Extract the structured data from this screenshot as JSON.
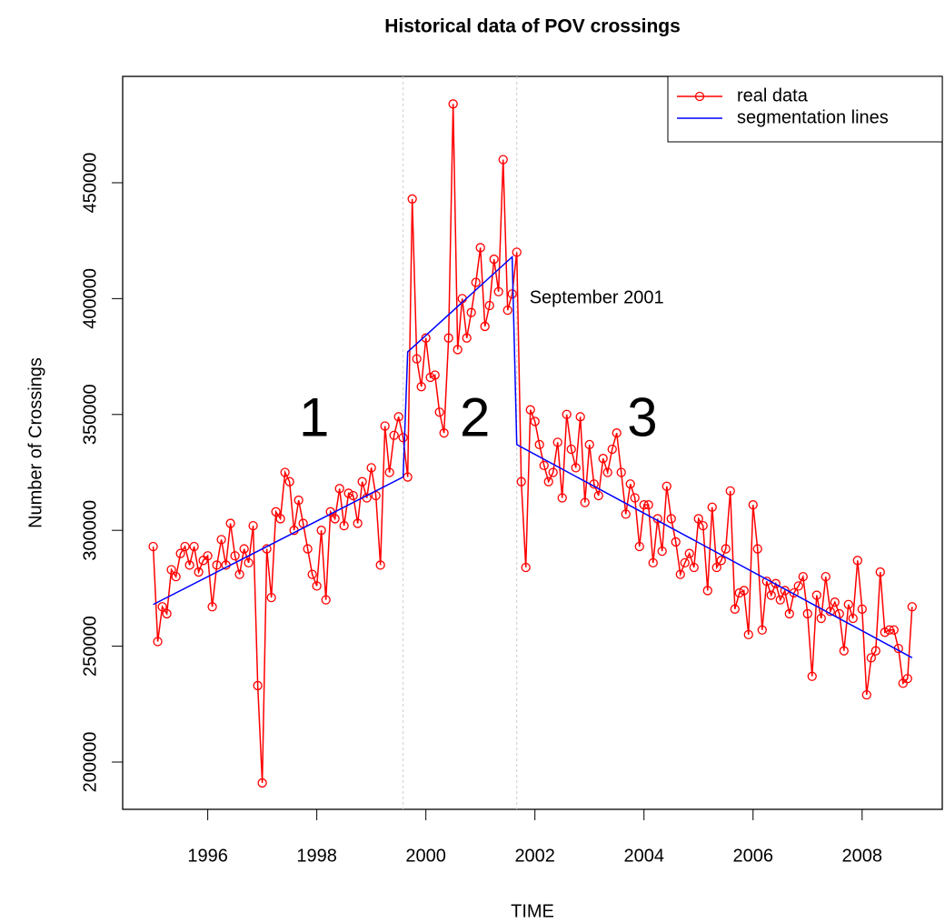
{
  "chart_data": {
    "type": "line",
    "title": "Historical data of POV crossings",
    "x_label": "TIME",
    "y_label": "Number of Crossings",
    "xlim": [
      1994.44,
      2009.47
    ],
    "xticks": [
      1996,
      1998,
      2000,
      2002,
      2004,
      2006,
      2008
    ],
    "ylim": [
      179600,
      495900
    ],
    "yticks": [
      200000,
      250000,
      300000,
      350000,
      400000,
      450000
    ],
    "legend": "topright",
    "vlines": {
      "x": [
        1999.583,
        2001.667
      ],
      "color": "#cccccc"
    },
    "annotations": [
      {
        "text": "1",
        "x": 1997.95,
        "y": 347000
      },
      {
        "text": "2",
        "x": 2000.9,
        "y": 347000
      },
      {
        "text": "3",
        "x": 2003.97,
        "y": 347000
      },
      {
        "text": "September 2001",
        "x": 2001.9,
        "y": 400000
      }
    ],
    "series": [
      {
        "name": "real data",
        "color": "#ff0000",
        "markers": true,
        "x": [
          1995.0,
          1995.083,
          1995.167,
          1995.25,
          1995.333,
          1995.417,
          1995.5,
          1995.583,
          1995.667,
          1995.75,
          1995.833,
          1995.917,
          1996.0,
          1996.083,
          1996.167,
          1996.25,
          1996.333,
          1996.417,
          1996.5,
          1996.583,
          1996.667,
          1996.75,
          1996.833,
          1996.917,
          1997.0,
          1997.083,
          1997.167,
          1997.25,
          1997.333,
          1997.417,
          1997.5,
          1997.583,
          1997.667,
          1997.75,
          1997.833,
          1997.917,
          1998.0,
          1998.083,
          1998.167,
          1998.25,
          1998.333,
          1998.417,
          1998.5,
          1998.583,
          1998.667,
          1998.75,
          1998.833,
          1998.917,
          1999.0,
          1999.083,
          1999.167,
          1999.25,
          1999.333,
          1999.417,
          1999.5,
          1999.583,
          1999.667,
          1999.75,
          1999.833,
          1999.917,
          2000.0,
          2000.083,
          2000.167,
          2000.25,
          2000.333,
          2000.417,
          2000.5,
          2000.583,
          2000.667,
          2000.75,
          2000.833,
          2000.917,
          2001.0,
          2001.083,
          2001.167,
          2001.25,
          2001.333,
          2001.417,
          2001.5,
          2001.583,
          2001.667,
          2001.75,
          2001.833,
          2001.917,
          2002.0,
          2002.083,
          2002.167,
          2002.25,
          2002.333,
          2002.417,
          2002.5,
          2002.583,
          2002.667,
          2002.75,
          2002.833,
          2002.917,
          2003.0,
          2003.083,
          2003.167,
          2003.25,
          2003.333,
          2003.417,
          2003.5,
          2003.583,
          2003.667,
          2003.75,
          2003.833,
          2003.917,
          2004.0,
          2004.083,
          2004.167,
          2004.25,
          2004.333,
          2004.417,
          2004.5,
          2004.583,
          2004.667,
          2004.75,
          2004.833,
          2004.917,
          2005.0,
          2005.083,
          2005.167,
          2005.25,
          2005.333,
          2005.417,
          2005.5,
          2005.583,
          2005.667,
          2005.75,
          2005.833,
          2005.917,
          2006.0,
          2006.083,
          2006.167,
          2006.25,
          2006.333,
          2006.417,
          2006.5,
          2006.583,
          2006.667,
          2006.75,
          2006.833,
          2006.917,
          2007.0,
          2007.083,
          2007.167,
          2007.25,
          2007.333,
          2007.417,
          2007.5,
          2007.583,
          2007.667,
          2007.75,
          2007.833,
          2007.917,
          2008.0,
          2008.083,
          2008.167,
          2008.25,
          2008.333,
          2008.417,
          2008.5,
          2008.583,
          2008.667,
          2008.75,
          2008.833,
          2008.917
        ],
        "values": [
          293000,
          252000,
          267000,
          264000,
          283000,
          280000,
          290000,
          293000,
          285000,
          293000,
          282000,
          287000,
          289000,
          267000,
          285000,
          296000,
          285000,
          303000,
          289000,
          281000,
          292000,
          286000,
          302000,
          233000,
          191000,
          292000,
          271000,
          308000,
          305000,
          325000,
          321000,
          300000,
          313000,
          303000,
          292000,
          281000,
          276000,
          300000,
          270000,
          308000,
          305000,
          318000,
          302000,
          316000,
          315000,
          303000,
          321000,
          314000,
          327000,
          315000,
          285000,
          345000,
          325000,
          341000,
          349000,
          340000,
          323000,
          443000,
          374000,
          362000,
          383000,
          366000,
          367000,
          351000,
          342000,
          383000,
          484000,
          378000,
          400000,
          383000,
          394000,
          407000,
          422000,
          388000,
          397000,
          417000,
          403000,
          460000,
          395000,
          402000,
          420000,
          321000,
          284000,
          352000,
          347000,
          337000,
          328000,
          321000,
          325000,
          338000,
          314000,
          350000,
          335000,
          327000,
          349000,
          312000,
          337000,
          320000,
          315000,
          331000,
          325000,
          335000,
          342000,
          325000,
          307000,
          320000,
          314000,
          293000,
          311000,
          311000,
          286000,
          305000,
          291000,
          319000,
          305000,
          295000,
          281000,
          286000,
          290000,
          284000,
          305000,
          302000,
          274000,
          310000,
          284000,
          287000,
          292000,
          317000,
          266000,
          273000,
          274000,
          255000,
          311000,
          292000,
          257000,
          278000,
          272000,
          277000,
          270000,
          274000,
          264000,
          273000,
          276000,
          280000,
          264000,
          237000,
          272000,
          262000,
          280000,
          265000,
          269000,
          264000,
          248000,
          268000,
          262000,
          287000,
          266000,
          229000,
          245000,
          248000,
          282000,
          256000,
          257000,
          257000,
          249000,
          234000,
          236000,
          267000
        ]
      },
      {
        "name": "segmentation lines",
        "color": "#0000ff",
        "markers": false,
        "x": [
          1995.0,
          1999.583,
          1999.667,
          2001.583,
          2001.667,
          2008.917
        ],
        "values": [
          268000,
          323000,
          377000,
          418000,
          337000,
          245000
        ]
      }
    ]
  }
}
